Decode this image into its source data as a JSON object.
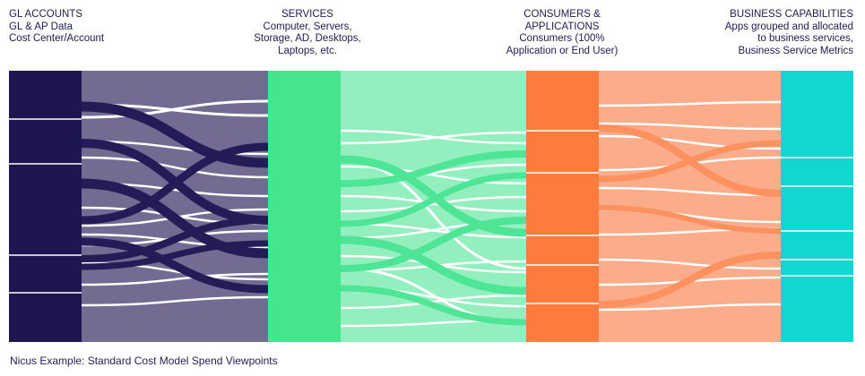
{
  "columns": [
    {
      "id": "gl",
      "lines": [
        "GL ACCOUNTS",
        "GL & AP Data",
        "Cost Center/Account"
      ],
      "color": "#1e1650"
    },
    {
      "id": "svc",
      "lines": [
        "SERVICES",
        "Computer, Servers,",
        "Storage, AD, Desktops,",
        "Laptops, etc."
      ],
      "color": "#44e58d"
    },
    {
      "id": "con",
      "lines": [
        "CONSUMERS &",
        "APPLICATIONS",
        "Consumers (100%",
        "Application or End User)"
      ],
      "color": "#fd7c3d"
    },
    {
      "id": "biz",
      "lines": [
        "BUSINESS CAPABILITIES",
        "Apps grouped and allocated",
        "to business services,",
        "Business Service Metrics"
      ],
      "color": "#14d6d1"
    }
  ],
  "flow_colors": [
    "#736b91",
    "#94efbf",
    "#fbad8b"
  ],
  "caption": "Nicus Example: Standard Cost Model Spend Viewpoints"
}
